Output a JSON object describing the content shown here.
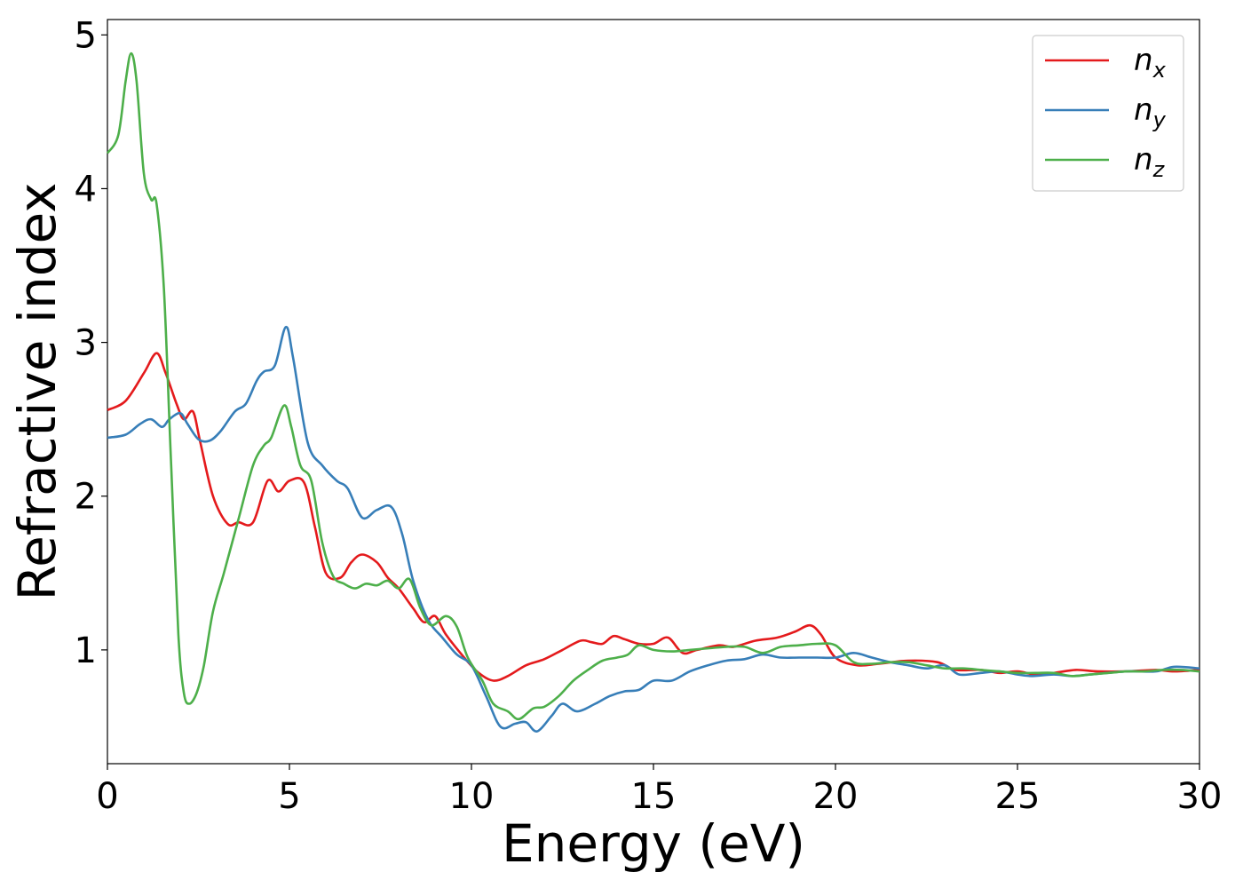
{
  "chart_data": {
    "type": "line",
    "xlabel": "Energy (eV)",
    "ylabel": "Refractive index",
    "xlim": [
      0,
      30
    ],
    "ylim": [
      0.26,
      5.1
    ],
    "xticks": [
      0,
      5,
      10,
      15,
      20,
      25,
      30
    ],
    "xtick_labels": [
      "0",
      "5",
      "10",
      "15",
      "20",
      "25",
      "30"
    ],
    "yticks": [
      1,
      2,
      3,
      4,
      5
    ],
    "ytick_labels": [
      "1",
      "2",
      "3",
      "4",
      "5"
    ],
    "grid": false,
    "legend_position": "top-right",
    "series": [
      {
        "name": "n_x",
        "label_base": "n",
        "label_sub": "x",
        "color": "#e41a1c",
        "points": [
          [
            0,
            2.56
          ],
          [
            0.5,
            2.62
          ],
          [
            1.0,
            2.8
          ],
          [
            1.35,
            2.93
          ],
          [
            1.6,
            2.8
          ],
          [
            1.9,
            2.6
          ],
          [
            2.1,
            2.5
          ],
          [
            2.35,
            2.55
          ],
          [
            2.55,
            2.35
          ],
          [
            2.9,
            2.0
          ],
          [
            3.3,
            1.82
          ],
          [
            3.6,
            1.83
          ],
          [
            4.0,
            1.83
          ],
          [
            4.4,
            2.1
          ],
          [
            4.7,
            2.03
          ],
          [
            5.0,
            2.1
          ],
          [
            5.4,
            2.09
          ],
          [
            5.7,
            1.8
          ],
          [
            6.0,
            1.5
          ],
          [
            6.4,
            1.47
          ],
          [
            6.7,
            1.57
          ],
          [
            7.0,
            1.62
          ],
          [
            7.4,
            1.57
          ],
          [
            7.7,
            1.47
          ],
          [
            8.0,
            1.4
          ],
          [
            8.4,
            1.27
          ],
          [
            8.7,
            1.18
          ],
          [
            9.0,
            1.22
          ],
          [
            9.3,
            1.1
          ],
          [
            9.8,
            0.95
          ],
          [
            10.2,
            0.85
          ],
          [
            10.6,
            0.8
          ],
          [
            11.0,
            0.83
          ],
          [
            11.5,
            0.9
          ],
          [
            12.0,
            0.94
          ],
          [
            12.5,
            1.0
          ],
          [
            13.0,
            1.06
          ],
          [
            13.3,
            1.05
          ],
          [
            13.6,
            1.04
          ],
          [
            13.9,
            1.09
          ],
          [
            14.2,
            1.07
          ],
          [
            14.6,
            1.04
          ],
          [
            15.0,
            1.04
          ],
          [
            15.4,
            1.08
          ],
          [
            15.8,
            0.98
          ],
          [
            16.2,
            1.0
          ],
          [
            16.8,
            1.03
          ],
          [
            17.2,
            1.02
          ],
          [
            17.8,
            1.06
          ],
          [
            18.4,
            1.08
          ],
          [
            18.9,
            1.12
          ],
          [
            19.3,
            1.16
          ],
          [
            19.6,
            1.1
          ],
          [
            20.0,
            0.95
          ],
          [
            20.6,
            0.9
          ],
          [
            21.2,
            0.91
          ],
          [
            22.0,
            0.93
          ],
          [
            22.8,
            0.92
          ],
          [
            23.3,
            0.87
          ],
          [
            24.0,
            0.87
          ],
          [
            24.5,
            0.85
          ],
          [
            25.0,
            0.86
          ],
          [
            25.5,
            0.84
          ],
          [
            26.0,
            0.85
          ],
          [
            26.6,
            0.87
          ],
          [
            27.2,
            0.86
          ],
          [
            28.0,
            0.86
          ],
          [
            28.8,
            0.87
          ],
          [
            29.3,
            0.86
          ],
          [
            30.0,
            0.87
          ]
        ]
      },
      {
        "name": "n_y",
        "label_base": "n",
        "label_sub": "y",
        "color": "#377eb8",
        "points": [
          [
            0,
            2.38
          ],
          [
            0.5,
            2.4
          ],
          [
            0.9,
            2.47
          ],
          [
            1.2,
            2.5
          ],
          [
            1.5,
            2.45
          ],
          [
            1.7,
            2.5
          ],
          [
            2.0,
            2.54
          ],
          [
            2.2,
            2.47
          ],
          [
            2.5,
            2.37
          ],
          [
            2.8,
            2.36
          ],
          [
            3.1,
            2.42
          ],
          [
            3.5,
            2.55
          ],
          [
            3.8,
            2.6
          ],
          [
            4.1,
            2.75
          ],
          [
            4.3,
            2.81
          ],
          [
            4.6,
            2.85
          ],
          [
            4.9,
            3.1
          ],
          [
            5.1,
            2.9
          ],
          [
            5.5,
            2.35
          ],
          [
            5.9,
            2.2
          ],
          [
            6.3,
            2.1
          ],
          [
            6.6,
            2.05
          ],
          [
            7.0,
            1.86
          ],
          [
            7.4,
            1.91
          ],
          [
            7.8,
            1.93
          ],
          [
            8.1,
            1.75
          ],
          [
            8.4,
            1.45
          ],
          [
            8.8,
            1.2
          ],
          [
            9.2,
            1.08
          ],
          [
            9.6,
            0.97
          ],
          [
            10.0,
            0.9
          ],
          [
            10.4,
            0.7
          ],
          [
            10.8,
            0.5
          ],
          [
            11.2,
            0.52
          ],
          [
            11.5,
            0.53
          ],
          [
            11.8,
            0.47
          ],
          [
            12.2,
            0.57
          ],
          [
            12.5,
            0.65
          ],
          [
            12.9,
            0.6
          ],
          [
            13.4,
            0.65
          ],
          [
            13.8,
            0.7
          ],
          [
            14.2,
            0.73
          ],
          [
            14.6,
            0.74
          ],
          [
            15.0,
            0.8
          ],
          [
            15.5,
            0.8
          ],
          [
            16.0,
            0.86
          ],
          [
            16.5,
            0.9
          ],
          [
            17.0,
            0.93
          ],
          [
            17.5,
            0.94
          ],
          [
            18.0,
            0.97
          ],
          [
            18.5,
            0.95
          ],
          [
            19.0,
            0.95
          ],
          [
            19.5,
            0.95
          ],
          [
            20.0,
            0.95
          ],
          [
            20.5,
            0.98
          ],
          [
            21.0,
            0.95
          ],
          [
            21.5,
            0.92
          ],
          [
            22.0,
            0.9
          ],
          [
            22.5,
            0.88
          ],
          [
            23.0,
            0.9
          ],
          [
            23.4,
            0.84
          ],
          [
            24.0,
            0.85
          ],
          [
            24.5,
            0.86
          ],
          [
            25.0,
            0.84
          ],
          [
            25.4,
            0.83
          ],
          [
            26.0,
            0.84
          ],
          [
            26.5,
            0.83
          ],
          [
            27.0,
            0.84
          ],
          [
            28.0,
            0.86
          ],
          [
            28.8,
            0.86
          ],
          [
            29.3,
            0.89
          ],
          [
            30.0,
            0.88
          ]
        ]
      },
      {
        "name": "n_z",
        "label_base": "n",
        "label_sub": "z",
        "color": "#4daf4a",
        "points": [
          [
            0,
            4.23
          ],
          [
            0.3,
            4.35
          ],
          [
            0.5,
            4.7
          ],
          [
            0.65,
            4.88
          ],
          [
            0.8,
            4.7
          ],
          [
            1.0,
            4.1
          ],
          [
            1.2,
            3.93
          ],
          [
            1.35,
            3.9
          ],
          [
            1.55,
            3.35
          ],
          [
            1.75,
            2.2
          ],
          [
            1.95,
            1.1
          ],
          [
            2.1,
            0.72
          ],
          [
            2.25,
            0.65
          ],
          [
            2.45,
            0.72
          ],
          [
            2.65,
            0.9
          ],
          [
            2.9,
            1.25
          ],
          [
            3.2,
            1.5
          ],
          [
            3.6,
            1.85
          ],
          [
            4.0,
            2.2
          ],
          [
            4.3,
            2.33
          ],
          [
            4.5,
            2.38
          ],
          [
            4.85,
            2.59
          ],
          [
            5.05,
            2.45
          ],
          [
            5.3,
            2.2
          ],
          [
            5.6,
            2.1
          ],
          [
            5.9,
            1.7
          ],
          [
            6.2,
            1.48
          ],
          [
            6.5,
            1.43
          ],
          [
            6.8,
            1.4
          ],
          [
            7.1,
            1.43
          ],
          [
            7.4,
            1.42
          ],
          [
            7.7,
            1.45
          ],
          [
            8.0,
            1.4
          ],
          [
            8.3,
            1.46
          ],
          [
            8.6,
            1.27
          ],
          [
            8.9,
            1.16
          ],
          [
            9.3,
            1.22
          ],
          [
            9.6,
            1.15
          ],
          [
            9.9,
            0.95
          ],
          [
            10.3,
            0.8
          ],
          [
            10.6,
            0.65
          ],
          [
            11.0,
            0.6
          ],
          [
            11.3,
            0.55
          ],
          [
            11.7,
            0.62
          ],
          [
            12.0,
            0.63
          ],
          [
            12.4,
            0.7
          ],
          [
            12.8,
            0.8
          ],
          [
            13.2,
            0.87
          ],
          [
            13.6,
            0.93
          ],
          [
            14.0,
            0.95
          ],
          [
            14.3,
            0.97
          ],
          [
            14.6,
            1.03
          ],
          [
            15.0,
            1.0
          ],
          [
            15.5,
            0.99
          ],
          [
            16.0,
            1.0
          ],
          [
            16.5,
            1.01
          ],
          [
            17.0,
            1.02
          ],
          [
            17.5,
            1.02
          ],
          [
            18.0,
            0.98
          ],
          [
            18.5,
            1.02
          ],
          [
            19.0,
            1.03
          ],
          [
            19.5,
            1.04
          ],
          [
            20.0,
            1.03
          ],
          [
            20.5,
            0.92
          ],
          [
            21.0,
            0.91
          ],
          [
            21.5,
            0.92
          ],
          [
            22.0,
            0.92
          ],
          [
            22.5,
            0.9
          ],
          [
            23.0,
            0.88
          ],
          [
            23.5,
            0.88
          ],
          [
            24.0,
            0.87
          ],
          [
            24.5,
            0.86
          ],
          [
            25.0,
            0.85
          ],
          [
            25.5,
            0.85
          ],
          [
            26.0,
            0.85
          ],
          [
            26.5,
            0.83
          ],
          [
            27.0,
            0.84
          ],
          [
            27.5,
            0.85
          ],
          [
            28.0,
            0.86
          ],
          [
            28.5,
            0.86
          ],
          [
            29.0,
            0.87
          ],
          [
            29.5,
            0.87
          ],
          [
            30.0,
            0.86
          ]
        ]
      }
    ]
  }
}
